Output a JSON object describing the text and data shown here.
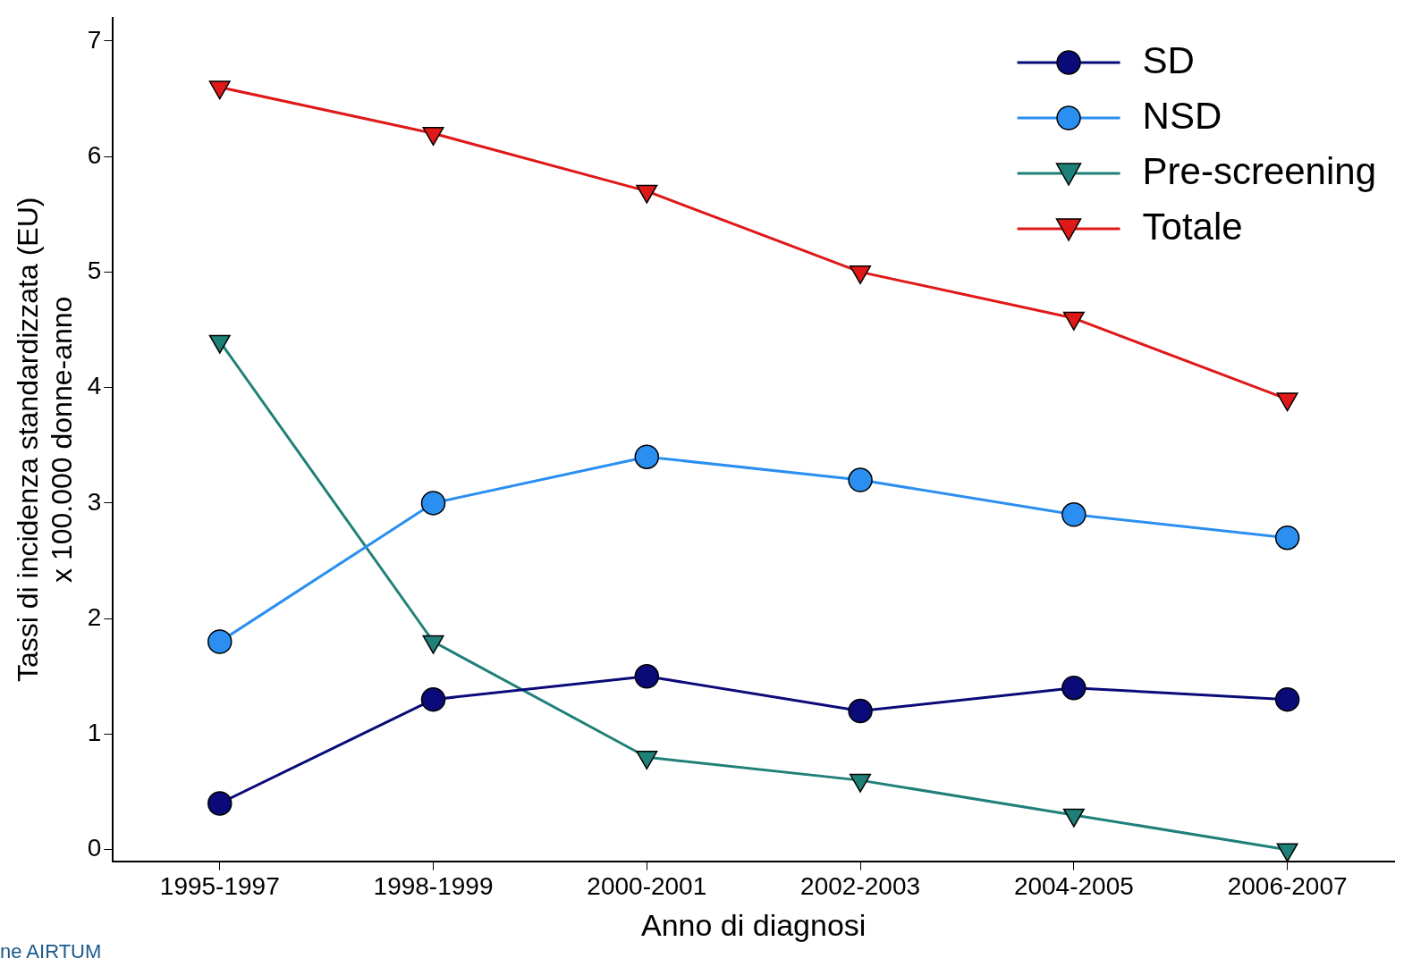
{
  "chart_data": {
    "type": "line",
    "xlabel": "Anno di diagnosi",
    "ylabel": "Tassi di incidenza standardizzata (EU)\nx 100.000 donne-anno",
    "categories": [
      "1995-1997",
      "1998-1999",
      "2000-2001",
      "2002-2003",
      "2004-2005",
      "2006-2007"
    ],
    "series": [
      {
        "name": "SD",
        "color": "#0a0a78",
        "marker": "circle",
        "values": [
          0.4,
          1.3,
          1.5,
          1.2,
          1.4,
          1.3
        ]
      },
      {
        "name": "NSD",
        "color": "#2a8ff0",
        "marker": "circle",
        "values": [
          1.8,
          3.0,
          3.4,
          3.2,
          2.9,
          2.7
        ]
      },
      {
        "name": "Pre-screening",
        "color": "#1f8078",
        "marker": "triangle",
        "values": [
          4.4,
          1.8,
          0.8,
          0.6,
          0.3,
          0.0
        ]
      },
      {
        "name": "Totale",
        "color": "#e01818",
        "marker": "triangle",
        "values": [
          6.6,
          6.2,
          5.7,
          5.0,
          4.6,
          3.9
        ]
      }
    ],
    "ylim": [
      -0.1,
      7.2
    ],
    "yticks": [
      0,
      1,
      2,
      3,
      4,
      5,
      6,
      7
    ],
    "grid": false,
    "legend": "top right",
    "line_style": "solid",
    "annotations": [
      "ne AIRTUM"
    ]
  }
}
